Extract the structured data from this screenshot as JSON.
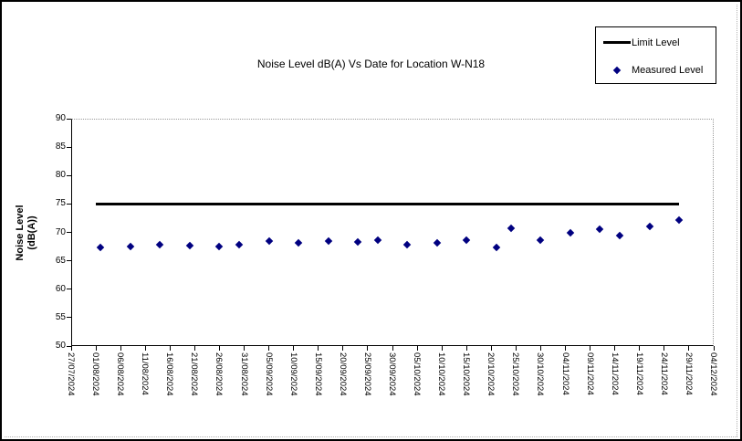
{
  "window": {
    "background": "#ffffff",
    "border_color": "#000000"
  },
  "chart_data": {
    "type": "scatter",
    "title": "Noise Level dB(A) Vs Date for Location W-N18",
    "ylabel": "Noise Level (dB(A))",
    "ylabel_lines": [
      "Noise Level",
      "(dB(A))"
    ],
    "xlabel": "",
    "ylim": [
      50,
      90
    ],
    "yticks": [
      50,
      55,
      60,
      65,
      70,
      75,
      80,
      85,
      90
    ],
    "x_axis_start": "27/07/2024",
    "x_axis_end": "04/12/2024",
    "xtick_labels": [
      "27/07/2024",
      "01/08/2024",
      "06/08/2024",
      "11/08/2024",
      "16/08/2024",
      "21/08/2024",
      "26/08/2024",
      "31/08/2024",
      "05/09/2024",
      "10/09/2024",
      "15/09/2024",
      "20/09/2024",
      "25/09/2024",
      "30/09/2024",
      "05/10/2024",
      "10/10/2024",
      "15/10/2024",
      "20/10/2024",
      "25/10/2024",
      "30/10/2024",
      "04/11/2024",
      "09/11/2024",
      "14/11/2024",
      "19/11/2024",
      "24/11/2024",
      "29/11/2024",
      "04/12/2024"
    ],
    "grid": false,
    "legend_position": "top-right",
    "series": [
      {
        "name": "Limit Level",
        "type": "line",
        "color": "#000000",
        "line_width": 3,
        "points": [
          {
            "date": "01/08/2024",
            "value": 75
          },
          {
            "date": "27/11/2024",
            "value": 75
          }
        ]
      },
      {
        "name": "Measured Level",
        "type": "scatter",
        "marker": "diamond",
        "color": "#000080",
        "points": [
          {
            "date": "02/08/2024",
            "value": 67.3
          },
          {
            "date": "08/08/2024",
            "value": 67.5
          },
          {
            "date": "14/08/2024",
            "value": 67.8
          },
          {
            "date": "20/08/2024",
            "value": 67.6
          },
          {
            "date": "26/08/2024",
            "value": 67.5
          },
          {
            "date": "30/08/2024",
            "value": 67.9
          },
          {
            "date": "05/09/2024",
            "value": 68.5
          },
          {
            "date": "11/09/2024",
            "value": 68.2
          },
          {
            "date": "17/09/2024",
            "value": 68.5
          },
          {
            "date": "23/09/2024",
            "value": 68.3
          },
          {
            "date": "27/09/2024",
            "value": 68.6
          },
          {
            "date": "03/10/2024",
            "value": 67.8
          },
          {
            "date": "09/10/2024",
            "value": 68.1
          },
          {
            "date": "15/10/2024",
            "value": 68.6
          },
          {
            "date": "21/10/2024",
            "value": 67.4
          },
          {
            "date": "24/10/2024",
            "value": 70.8
          },
          {
            "date": "30/10/2024",
            "value": 68.7
          },
          {
            "date": "05/11/2024",
            "value": 70.0
          },
          {
            "date": "11/11/2024",
            "value": 70.5
          },
          {
            "date": "15/11/2024",
            "value": 69.5
          },
          {
            "date": "21/11/2024",
            "value": 71.1
          },
          {
            "date": "27/11/2024",
            "value": 72.2
          }
        ]
      }
    ]
  }
}
